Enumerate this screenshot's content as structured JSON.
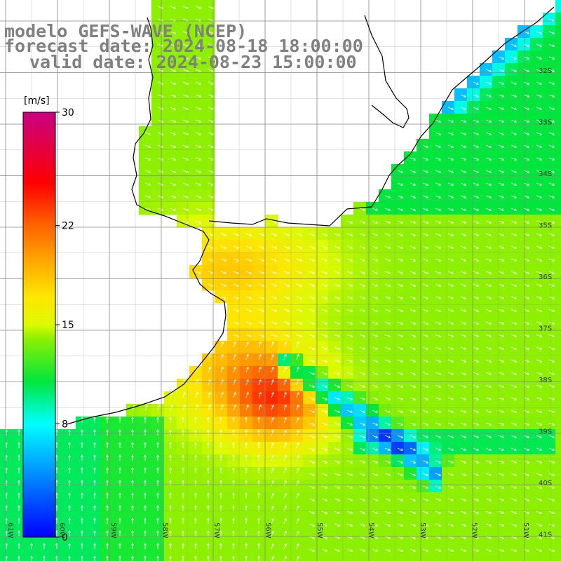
{
  "title": {
    "model": "modelo GEFS-WAVE (NCEP)",
    "forecast": "forecast date: 2024-08-18 18:00:00",
    "valid": "valid date: 2024-08-23 15:00:00"
  },
  "colorbar": {
    "unit": "[m/s]",
    "max_label": "30",
    "label_22": "22",
    "label_15": "15",
    "label_8": "8",
    "min_label": "0"
  },
  "lat_labels": [
    "32S",
    "33S",
    "34S",
    "35S",
    "36S",
    "37S",
    "38S",
    "39S",
    "40S",
    "41S"
  ],
  "lon_labels": [
    "61W",
    "60W",
    "59W",
    "58W",
    "57W",
    "56W",
    "55W",
    "54W",
    "53W",
    "52W",
    "51W"
  ],
  "colors": {
    "land_outline": "#000000",
    "grid": "#888888",
    "arrow": "#ffffff",
    "title": "#808080"
  }
}
